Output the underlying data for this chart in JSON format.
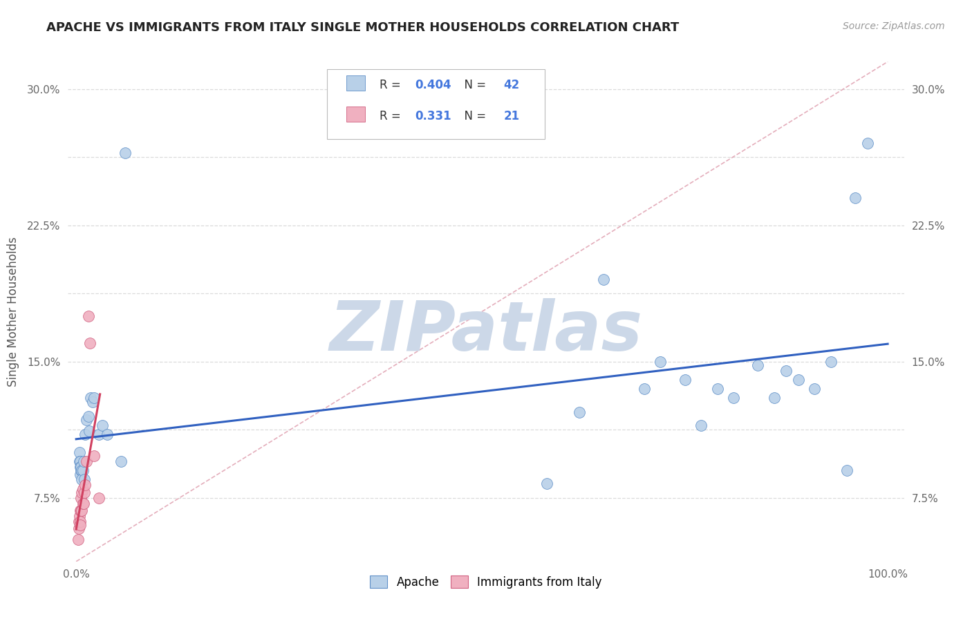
{
  "title": "APACHE VS IMMIGRANTS FROM ITALY SINGLE MOTHER HOUSEHOLDS CORRELATION CHART",
  "source": "Source: ZipAtlas.com",
  "ylabel": "Single Mother Households",
  "R_blue": "0.404",
  "N_blue": "42",
  "R_pink": "0.331",
  "N_pink": "21",
  "blue_scatter_color": "#b8d0e8",
  "blue_edge_color": "#6090c8",
  "pink_scatter_color": "#f0b0c0",
  "pink_edge_color": "#d06080",
  "blue_line_color": "#3060c0",
  "pink_line_color": "#d04060",
  "diag_line_color": "#e0a0b0",
  "grid_color": "#d8d8d8",
  "background_color": "#ffffff",
  "legend_blue_label": "Apache",
  "legend_pink_label": "Immigrants from Italy",
  "watermark": "ZIPatlas",
  "watermark_color": "#ccd8e8",
  "xlim": [
    -0.01,
    1.02
  ],
  "ylim": [
    0.04,
    0.315
  ],
  "y_ticks": [
    0.075,
    0.1125,
    0.15,
    0.1875,
    0.225,
    0.2625,
    0.3
  ],
  "y_tick_labels": [
    "7.5%",
    "",
    "15.0%",
    "",
    "22.5%",
    "",
    "30.0%"
  ],
  "apache_x": [
    0.004,
    0.004,
    0.005,
    0.005,
    0.005,
    0.006,
    0.006,
    0.007,
    0.007,
    0.008,
    0.009,
    0.01,
    0.011,
    0.013,
    0.015,
    0.016,
    0.018,
    0.02,
    0.022,
    0.028,
    0.032,
    0.038,
    0.055,
    0.06,
    0.58,
    0.62,
    0.65,
    0.7,
    0.72,
    0.75,
    0.77,
    0.79,
    0.81,
    0.84,
    0.86,
    0.875,
    0.89,
    0.91,
    0.93,
    0.95,
    0.96,
    0.975
  ],
  "apache_y": [
    0.1,
    0.095,
    0.095,
    0.088,
    0.092,
    0.09,
    0.092,
    0.09,
    0.085,
    0.09,
    0.095,
    0.085,
    0.11,
    0.118,
    0.12,
    0.112,
    0.13,
    0.128,
    0.13,
    0.11,
    0.115,
    0.11,
    0.095,
    0.265,
    0.083,
    0.122,
    0.195,
    0.135,
    0.15,
    0.14,
    0.115,
    0.135,
    0.13,
    0.148,
    0.13,
    0.145,
    0.14,
    0.135,
    0.15,
    0.09,
    0.24,
    0.27
  ],
  "italy_x": [
    0.002,
    0.003,
    0.003,
    0.004,
    0.005,
    0.005,
    0.005,
    0.006,
    0.006,
    0.007,
    0.007,
    0.008,
    0.008,
    0.009,
    0.01,
    0.011,
    0.013,
    0.015,
    0.017,
    0.022,
    0.028
  ],
  "italy_y": [
    0.052,
    0.058,
    0.062,
    0.065,
    0.062,
    0.068,
    0.06,
    0.075,
    0.068,
    0.068,
    0.078,
    0.08,
    0.072,
    0.072,
    0.078,
    0.082,
    0.095,
    0.175,
    0.16,
    0.098,
    0.075
  ]
}
